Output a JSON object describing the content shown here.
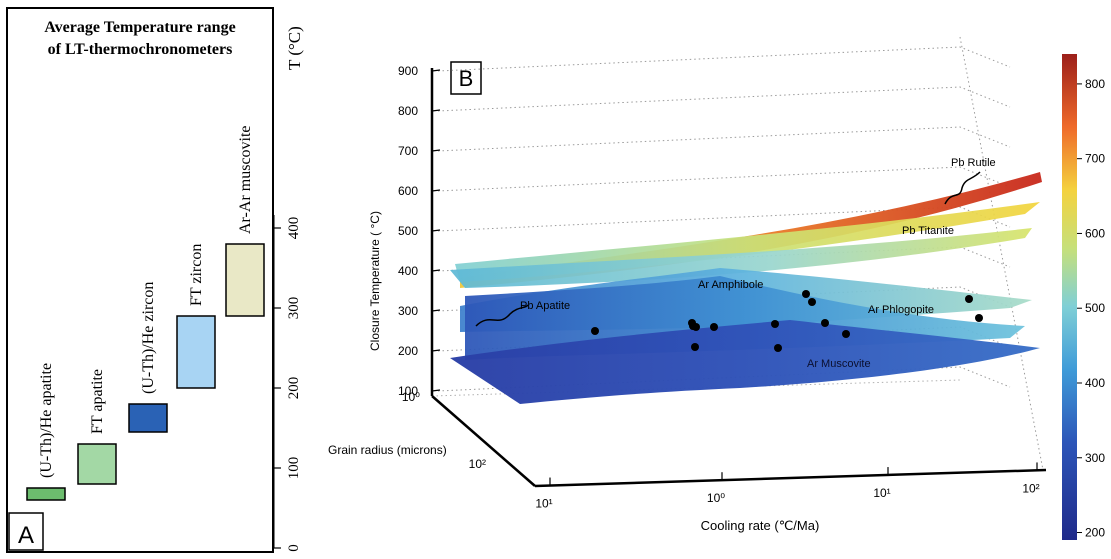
{
  "chart_data": [
    {
      "type": "bar",
      "panel_label": "A",
      "title": "Average Temperature range of LT-thermochronometers",
      "title_lines": [
        "Average Temperature range",
        "of LT-thermochronometers"
      ],
      "ylabel": "T (°C)",
      "yticks": [
        0,
        100,
        200,
        300,
        400
      ],
      "ylim": [
        0,
        500
      ],
      "categories": [
        "(U-Th)/He apatite",
        "FT apatite",
        "(U-Th)/He zircon",
        "FT zircon",
        "Ar-Ar muscovite"
      ],
      "ranges": [
        [
          60,
          75
        ],
        [
          80,
          130
        ],
        [
          145,
          180
        ],
        [
          200,
          290
        ],
        [
          290,
          380
        ]
      ],
      "colors": [
        "#6cbd6e",
        "#a3d8a5",
        "#2a62b5",
        "#a8d4f3",
        "#e9e8c6"
      ]
    },
    {
      "type": "surface3d",
      "panel_label": "B",
      "xlabel": "Cooling rate  (℃/Ma)",
      "ylabel": "Grain radius (microns)",
      "zlabel": "Closure Temperature ( °C)",
      "xticks": [
        "10¹",
        "10⁰",
        "10¹",
        "10²"
      ],
      "yticks": [
        "10⁰",
        "10²"
      ],
      "zticks": [
        100,
        200,
        300,
        400,
        500,
        600,
        700,
        800,
        900
      ],
      "zlim": [
        100,
        900
      ],
      "colorbar": {
        "ticks": [
          200,
          300,
          400,
          500,
          600,
          700,
          800
        ],
        "range": [
          190,
          840
        ]
      },
      "surfaces": [
        {
          "name": "Pb Rutile",
          "z_range": [
            380,
            660
          ]
        },
        {
          "name": "Pb Titanite",
          "z_range": [
            380,
            560
          ]
        },
        {
          "name": "Ar Amphibole",
          "z_range": [
            380,
            460
          ]
        },
        {
          "name": "Ar Phlogopite",
          "z_range": [
            280,
            400
          ]
        },
        {
          "name": "Pb Apatite",
          "z_range": [
            280,
            360
          ]
        },
        {
          "name": "Ar Muscovite",
          "z_range": [
            200,
            310
          ]
        }
      ],
      "points_count": 14
    }
  ]
}
